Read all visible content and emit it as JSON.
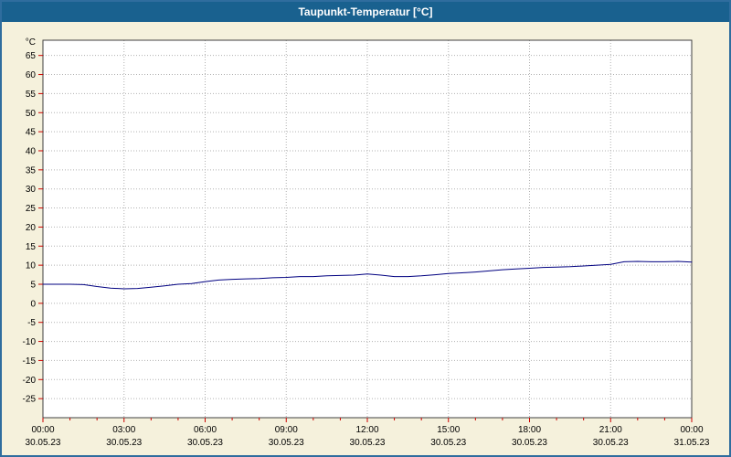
{
  "window": {
    "title": "Taupunkt-Temperatur [°C]"
  },
  "colors": {
    "titlebar_bg": "#19618f",
    "titlebar_text": "#ffffff",
    "page_bg": "#f5f1dc",
    "page_border": "#2f6d9e",
    "plot_bg": "#ffffff",
    "plot_border": "#404040",
    "grid": "#b0b0b0",
    "tick": "#cc0000",
    "line": "#000080"
  },
  "chart_data": {
    "type": "line",
    "title": "Taupunkt-Temperatur [°C]",
    "ylabel": "°C",
    "xlabel": "",
    "ylim": [
      -30,
      69
    ],
    "xlim": [
      0,
      24
    ],
    "grid": true,
    "legend": "none",
    "yticks": [
      65,
      60,
      55,
      50,
      45,
      40,
      35,
      30,
      25,
      20,
      15,
      10,
      5,
      0,
      -5,
      -10,
      -15,
      -20,
      -25
    ],
    "xticks": [
      {
        "hour": 0,
        "time": "00:00",
        "date": "30.05.23"
      },
      {
        "hour": 3,
        "time": "03:00",
        "date": "30.05.23"
      },
      {
        "hour": 6,
        "time": "06:00",
        "date": "30.05.23"
      },
      {
        "hour": 9,
        "time": "09:00",
        "date": "30.05.23"
      },
      {
        "hour": 12,
        "time": "12:00",
        "date": "30.05.23"
      },
      {
        "hour": 15,
        "time": "15:00",
        "date": "30.05.23"
      },
      {
        "hour": 18,
        "time": "18:00",
        "date": "30.05.23"
      },
      {
        "hour": 21,
        "time": "21:00",
        "date": "30.05.23"
      },
      {
        "hour": 24,
        "time": "00:00",
        "date": "31.05.23"
      }
    ],
    "series": [
      {
        "name": "Taupunkt-Temperatur",
        "color": "#000080",
        "x": [
          0,
          0.5,
          1,
          1.5,
          2,
          2.5,
          3,
          3.5,
          4,
          4.5,
          5,
          5.5,
          6,
          6.5,
          7,
          7.5,
          8,
          8.5,
          9,
          9.5,
          10,
          10.5,
          11,
          11.5,
          12,
          12.5,
          13,
          13.5,
          14,
          14.5,
          15,
          15.5,
          16,
          16.5,
          17,
          17.5,
          18,
          18.5,
          19,
          19.5,
          20,
          20.5,
          21,
          21.5,
          22,
          22.5,
          23,
          23.5,
          24
        ],
        "y": [
          5.0,
          5.0,
          5.0,
          4.9,
          4.4,
          4.0,
          3.8,
          3.9,
          4.2,
          4.6,
          5.0,
          5.2,
          5.7,
          6.1,
          6.3,
          6.4,
          6.5,
          6.7,
          6.8,
          7.0,
          7.0,
          7.2,
          7.3,
          7.4,
          7.7,
          7.4,
          7.0,
          7.0,
          7.2,
          7.5,
          7.8,
          8.0,
          8.2,
          8.5,
          8.8,
          9.0,
          9.2,
          9.4,
          9.5,
          9.6,
          9.8,
          10.0,
          10.2,
          10.9,
          11.0,
          10.9,
          10.9,
          11.0,
          10.8
        ]
      }
    ]
  }
}
